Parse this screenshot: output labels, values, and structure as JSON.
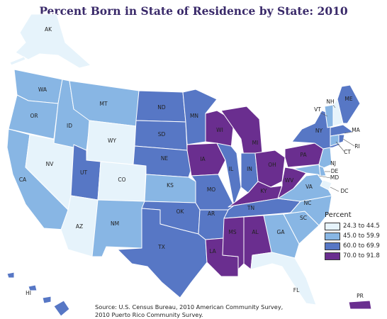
{
  "title": "Percent Born in State of Residence by State: 2010",
  "legend": {
    "title": "Percent",
    "items": [
      {
        "label": "24.3 to 44.5",
        "color": "#e6f3fb"
      },
      {
        "label": "45.0 to 59.9",
        "color": "#88b6e4"
      },
      {
        "label": "60.0 to 69.9",
        "color": "#5777c5"
      },
      {
        "label": "70.0 to 91.8",
        "color": "#6a2e8f"
      }
    ]
  },
  "source": {
    "line1": "Source: U.S. Census Bureau, 2010 American Community Survey,",
    "line2": "2010 Puerto Rico Community Survey."
  },
  "states": [
    {
      "code": "AK",
      "label": "AK",
      "class": 0
    },
    {
      "code": "WA",
      "label": "WA",
      "class": 1
    },
    {
      "code": "OR",
      "label": "OR",
      "class": 1
    },
    {
      "code": "CA",
      "label": "CA",
      "class": 1
    },
    {
      "code": "NV",
      "label": "NV",
      "class": 0
    },
    {
      "code": "ID",
      "label": "ID",
      "class": 1
    },
    {
      "code": "MT",
      "label": "MT",
      "class": 1
    },
    {
      "code": "WY",
      "label": "WY",
      "class": 0
    },
    {
      "code": "UT",
      "label": "UT",
      "class": 2
    },
    {
      "code": "CO",
      "label": "CO",
      "class": 0
    },
    {
      "code": "AZ",
      "label": "AZ",
      "class": 0
    },
    {
      "code": "NM",
      "label": "NM",
      "class": 1
    },
    {
      "code": "ND",
      "label": "ND",
      "class": 2
    },
    {
      "code": "SD",
      "label": "SD",
      "class": 2
    },
    {
      "code": "NE",
      "label": "NE",
      "class": 2
    },
    {
      "code": "KS",
      "label": "KS",
      "class": 1
    },
    {
      "code": "OK",
      "label": "OK",
      "class": 2
    },
    {
      "code": "TX",
      "label": "TX",
      "class": 2
    },
    {
      "code": "MN",
      "label": "MN",
      "class": 2
    },
    {
      "code": "IA",
      "label": "IA",
      "class": 3
    },
    {
      "code": "MO",
      "label": "MO",
      "class": 2
    },
    {
      "code": "AR",
      "label": "AR",
      "class": 2
    },
    {
      "code": "LA",
      "label": "LA",
      "class": 3
    },
    {
      "code": "WI",
      "label": "WI",
      "class": 3
    },
    {
      "code": "IL",
      "label": "IL",
      "class": 2
    },
    {
      "code": "MI",
      "label": "MI",
      "class": 3
    },
    {
      "code": "IN",
      "label": "IN",
      "class": 2
    },
    {
      "code": "OH",
      "label": "OH",
      "class": 3
    },
    {
      "code": "KY",
      "label": "KY",
      "class": 3
    },
    {
      "code": "TN",
      "label": "TN",
      "class": 2
    },
    {
      "code": "MS",
      "label": "MS",
      "class": 3
    },
    {
      "code": "AL",
      "label": "AL",
      "class": 3
    },
    {
      "code": "GA",
      "label": "GA",
      "class": 1
    },
    {
      "code": "FL",
      "label": "FL",
      "class": 0
    },
    {
      "code": "SC",
      "label": "SC",
      "class": 1
    },
    {
      "code": "NC",
      "label": "NC",
      "class": 1
    },
    {
      "code": "VA",
      "label": "VA",
      "class": 1
    },
    {
      "code": "WV",
      "label": "WV",
      "class": 3
    },
    {
      "code": "PA",
      "label": "PA",
      "class": 3
    },
    {
      "code": "NY",
      "label": "NY",
      "class": 2
    },
    {
      "code": "VT",
      "label": "VT",
      "class": 1
    },
    {
      "code": "NH",
      "label": "NH",
      "class": 0
    },
    {
      "code": "ME",
      "label": "ME",
      "class": 2
    },
    {
      "code": "MA",
      "label": "MA",
      "class": 2
    },
    {
      "code": "RI",
      "label": "RI",
      "class": 2
    },
    {
      "code": "CT",
      "label": "CT",
      "class": 1
    },
    {
      "code": "NJ",
      "label": "NJ",
      "class": 1
    },
    {
      "code": "DE",
      "label": "DE",
      "class": 1
    },
    {
      "code": "MD",
      "label": "MD",
      "class": 1
    },
    {
      "code": "DC",
      "label": "DC",
      "class": 0
    },
    {
      "code": "HI",
      "label": "HI",
      "class": 2
    },
    {
      "code": "PR",
      "label": "PR",
      "class": 3
    }
  ]
}
